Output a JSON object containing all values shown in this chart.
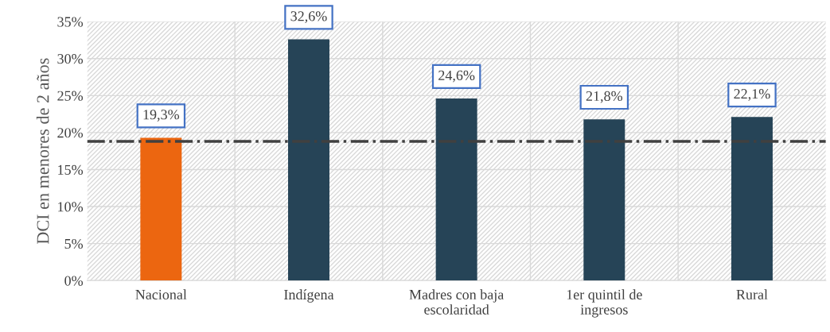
{
  "chart_data": {
    "type": "bar",
    "ylabel": "DCI en menores de 2 años",
    "categories": [
      "Nacional",
      "Indígena",
      "Madres con baja\nescolaridad",
      "1er quintil de\ningresos",
      "Rural"
    ],
    "values": [
      19.3,
      32.6,
      24.6,
      21.8,
      22.1
    ],
    "colors": [
      "#ec6610",
      "#264457",
      "#264457",
      "#264457",
      "#264457"
    ],
    "value_labels": [
      "19,3%",
      "32,6%",
      "24,6%",
      "21,8%",
      "22,1%"
    ],
    "ylim": [
      0,
      35
    ],
    "yticks": [
      {
        "value": 0,
        "label": "0%"
      },
      {
        "value": 5,
        "label": "5%"
      },
      {
        "value": 10,
        "label": "10%"
      },
      {
        "value": 15,
        "label": "15%"
      },
      {
        "value": 20,
        "label": "20%"
      },
      {
        "value": 25,
        "label": "25%"
      },
      {
        "value": 30,
        "label": "30%"
      },
      {
        "value": 35,
        "label": "35%"
      }
    ],
    "ref_lines": [
      {
        "axis": "y",
        "value": 18.8,
        "color": "#404040",
        "line_style": "dashdot"
      }
    ],
    "grid": true,
    "legend": false
  }
}
